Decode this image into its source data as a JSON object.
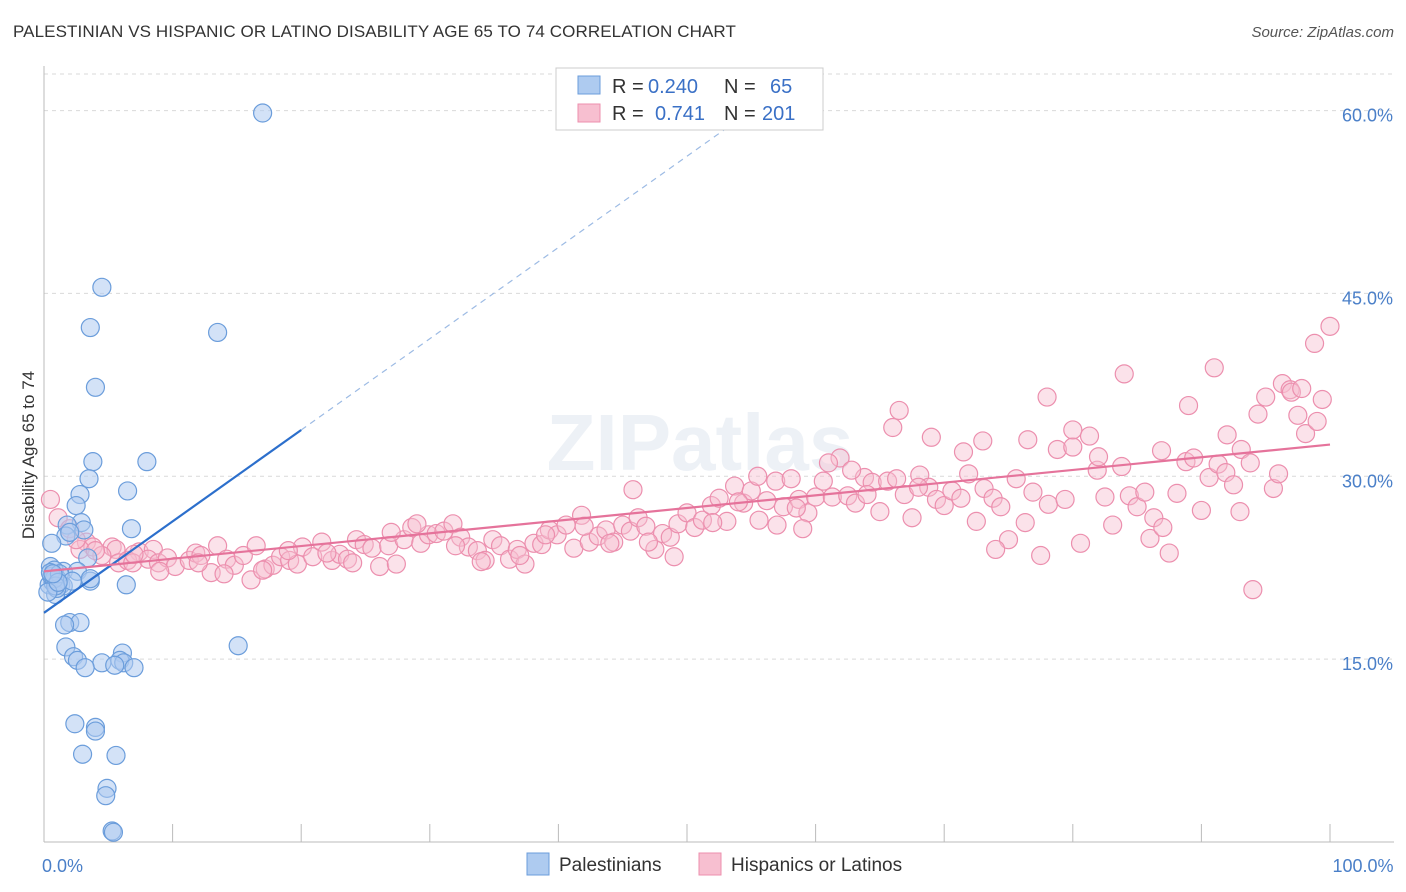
{
  "header": {
    "title": "PALESTINIAN VS HISPANIC OR LATINO DISABILITY AGE 65 TO 74 CORRELATION CHART",
    "source": "Source: ZipAtlas.com"
  },
  "colors": {
    "blue_fill": "#aecbf0",
    "blue_stroke": "#6b9ddb",
    "blue_line": "#2c6fcc",
    "pink_fill": "#f7bfd0",
    "pink_stroke": "#ec8fae",
    "pink_line": "#e5739b",
    "grid": "#d9d9d9",
    "tick_label": "#4a7fc8"
  },
  "legend_box": {
    "row1": {
      "r_label": "R =",
      "r_value": "0.240",
      "n_label": "N =",
      "n_value": "65"
    },
    "row2": {
      "r_label": "R =",
      "r_value": "0.741",
      "n_label": "N =",
      "n_value": "201"
    }
  },
  "bottom_legend": {
    "blue": "Palestinians",
    "pink": "Hispanics or Latinos"
  },
  "watermark": "ZIPatlas",
  "chart_data": {
    "type": "scatter",
    "title": "PALESTINIAN VS HISPANIC OR LATINO DISABILITY AGE 65 TO 74 CORRELATION CHART",
    "xlabel": "",
    "ylabel": "Disability Age 65 to 74",
    "xlim": [
      0,
      100
    ],
    "ylim": [
      0,
      63
    ],
    "x_tick_labels": [
      {
        "v": 0,
        "t": "0.0%"
      },
      {
        "v": 100,
        "t": "100.0%"
      }
    ],
    "y_tick_labels": [
      {
        "v": 15,
        "t": "15.0%"
      },
      {
        "v": 30,
        "t": "30.0%"
      },
      {
        "v": 45,
        "t": "45.0%"
      },
      {
        "v": 60,
        "t": "60.0%"
      }
    ],
    "grid": true,
    "legend_placement": "top-center",
    "series": [
      {
        "name": "Palestinians",
        "color": "#aecbf0",
        "trend": {
          "x0": 0,
          "y0": 18.8,
          "x1": 20,
          "y1": 33.8,
          "dash_to_x": 53,
          "dash_to_y": 58.5
        },
        "points": [
          [
            17.0,
            59.8
          ],
          [
            4.5,
            45.5
          ],
          [
            3.6,
            42.2
          ],
          [
            13.5,
            41.8
          ],
          [
            4.0,
            37.3
          ],
          [
            3.8,
            31.2
          ],
          [
            8.0,
            31.2
          ],
          [
            6.5,
            28.8
          ],
          [
            3.5,
            29.8
          ],
          [
            2.8,
            28.5
          ],
          [
            2.5,
            27.6
          ],
          [
            6.8,
            25.7
          ],
          [
            2.9,
            26.2
          ],
          [
            3.1,
            25.6
          ],
          [
            1.8,
            26.0
          ],
          [
            1.7,
            25.1
          ],
          [
            2.0,
            25.4
          ],
          [
            0.6,
            24.5
          ],
          [
            3.4,
            23.3
          ],
          [
            1.5,
            22.2
          ],
          [
            2.6,
            22.2
          ],
          [
            0.5,
            22.6
          ],
          [
            0.8,
            22.3
          ],
          [
            1.0,
            21.6
          ],
          [
            0.4,
            21.1
          ],
          [
            0.7,
            21.3
          ],
          [
            1.3,
            21.1
          ],
          [
            3.6,
            21.4
          ],
          [
            6.4,
            21.1
          ],
          [
            1.5,
            21.0
          ],
          [
            0.9,
            20.3
          ],
          [
            3.6,
            21.6
          ],
          [
            0.6,
            21.8
          ],
          [
            1.0,
            20.8
          ],
          [
            2.0,
            18.0
          ],
          [
            2.8,
            18.0
          ],
          [
            15.1,
            16.1
          ],
          [
            1.7,
            16.0
          ],
          [
            6.1,
            15.5
          ],
          [
            2.3,
            15.2
          ],
          [
            5.9,
            14.9
          ],
          [
            6.2,
            14.7
          ],
          [
            2.6,
            14.9
          ],
          [
            4.5,
            14.7
          ],
          [
            5.5,
            14.5
          ],
          [
            3.2,
            14.3
          ],
          [
            7.0,
            14.3
          ],
          [
            2.4,
            9.7
          ],
          [
            4.0,
            9.4
          ],
          [
            4.0,
            9.1
          ],
          [
            3.0,
            7.2
          ],
          [
            5.6,
            7.1
          ],
          [
            4.9,
            4.4
          ],
          [
            4.8,
            3.8
          ],
          [
            5.3,
            0.9
          ],
          [
            5.4,
            0.8
          ],
          [
            0.8,
            21.6
          ],
          [
            0.5,
            22.1
          ],
          [
            1.2,
            22.0
          ],
          [
            2.2,
            21.4
          ],
          [
            0.9,
            21.0
          ],
          [
            1.6,
            17.8
          ],
          [
            0.3,
            20.5
          ],
          [
            1.1,
            21.3
          ],
          [
            0.7,
            22.0
          ]
        ]
      },
      {
        "name": "Hispanics or Latinos",
        "color": "#f7bfd0",
        "trend": {
          "x0": 0,
          "y0": 22.2,
          "x1": 100,
          "y1": 32.6
        },
        "points": [
          [
            0.5,
            28.1
          ],
          [
            1.1,
            26.6
          ],
          [
            2.0,
            25.7
          ],
          [
            3.3,
            24.6
          ],
          [
            3.8,
            24.2
          ],
          [
            2.8,
            24.0
          ],
          [
            5.3,
            24.2
          ],
          [
            5.6,
            24.0
          ],
          [
            4.5,
            23.5
          ],
          [
            7.4,
            23.8
          ],
          [
            8.5,
            24.0
          ],
          [
            5.8,
            22.9
          ],
          [
            6.5,
            23.1
          ],
          [
            6.9,
            22.9
          ],
          [
            8.1,
            23.2
          ],
          [
            8.9,
            22.9
          ],
          [
            9.6,
            23.3
          ],
          [
            10.2,
            22.6
          ],
          [
            11.3,
            23.1
          ],
          [
            11.8,
            23.7
          ],
          [
            13.0,
            22.1
          ],
          [
            12.2,
            23.5
          ],
          [
            13.5,
            24.3
          ],
          [
            14.2,
            23.2
          ],
          [
            14.8,
            22.7
          ],
          [
            15.5,
            23.5
          ],
          [
            16.1,
            21.5
          ],
          [
            16.5,
            24.3
          ],
          [
            17.2,
            22.4
          ],
          [
            17.8,
            22.7
          ],
          [
            18.4,
            23.4
          ],
          [
            19.1,
            23.1
          ],
          [
            19.7,
            22.8
          ],
          [
            20.1,
            24.2
          ],
          [
            20.9,
            23.4
          ],
          [
            21.6,
            24.6
          ],
          [
            22.4,
            23.1
          ],
          [
            23.0,
            23.6
          ],
          [
            23.6,
            23.2
          ],
          [
            24.3,
            24.8
          ],
          [
            24.9,
            24.4
          ],
          [
            25.5,
            24.1
          ],
          [
            26.1,
            22.6
          ],
          [
            26.8,
            24.3
          ],
          [
            27.4,
            22.8
          ],
          [
            28.0,
            24.8
          ],
          [
            28.6,
            25.8
          ],
          [
            29.3,
            24.5
          ],
          [
            29.9,
            25.2
          ],
          [
            30.5,
            25.3
          ],
          [
            31.1,
            25.5
          ],
          [
            31.8,
            26.1
          ],
          [
            32.4,
            25.0
          ],
          [
            33.0,
            24.2
          ],
          [
            33.7,
            23.9
          ],
          [
            34.3,
            23.1
          ],
          [
            34.9,
            24.8
          ],
          [
            35.5,
            24.3
          ],
          [
            36.2,
            23.2
          ],
          [
            36.8,
            24.0
          ],
          [
            37.4,
            22.8
          ],
          [
            38.1,
            24.5
          ],
          [
            38.7,
            24.4
          ],
          [
            39.3,
            25.6
          ],
          [
            39.9,
            25.2
          ],
          [
            40.6,
            26.0
          ],
          [
            41.2,
            24.1
          ],
          [
            41.8,
            26.8
          ],
          [
            42.4,
            24.6
          ],
          [
            43.1,
            25.1
          ],
          [
            43.7,
            25.6
          ],
          [
            44.3,
            24.6
          ],
          [
            45.0,
            26.0
          ],
          [
            45.6,
            25.5
          ],
          [
            46.2,
            26.6
          ],
          [
            46.8,
            25.9
          ],
          [
            47.5,
            24.0
          ],
          [
            48.1,
            25.3
          ],
          [
            48.7,
            25.0
          ],
          [
            49.3,
            26.1
          ],
          [
            50.0,
            27.0
          ],
          [
            50.6,
            25.8
          ],
          [
            51.2,
            26.4
          ],
          [
            51.9,
            27.6
          ],
          [
            52.5,
            28.2
          ],
          [
            53.1,
            26.3
          ],
          [
            53.7,
            29.2
          ],
          [
            54.4,
            27.8
          ],
          [
            55.0,
            28.8
          ],
          [
            55.6,
            26.4
          ],
          [
            56.2,
            28.0
          ],
          [
            56.9,
            29.6
          ],
          [
            57.5,
            27.5
          ],
          [
            58.1,
            29.8
          ],
          [
            58.7,
            28.1
          ],
          [
            59.4,
            27.0
          ],
          [
            60.0,
            28.3
          ],
          [
            60.6,
            29.6
          ],
          [
            61.3,
            28.3
          ],
          [
            61.9,
            31.5
          ],
          [
            62.5,
            28.4
          ],
          [
            63.1,
            27.8
          ],
          [
            63.8,
            29.9
          ],
          [
            64.4,
            29.5
          ],
          [
            65.0,
            27.1
          ],
          [
            65.6,
            29.6
          ],
          [
            66.3,
            29.8
          ],
          [
            66.9,
            28.5
          ],
          [
            67.5,
            26.6
          ],
          [
            68.1,
            30.1
          ],
          [
            68.8,
            29.1
          ],
          [
            69.4,
            28.1
          ],
          [
            70.0,
            27.6
          ],
          [
            70.6,
            28.8
          ],
          [
            71.3,
            28.2
          ],
          [
            71.9,
            30.2
          ],
          [
            72.5,
            26.3
          ],
          [
            73.1,
            29.0
          ],
          [
            73.8,
            28.2
          ],
          [
            74.4,
            27.5
          ],
          [
            75.0,
            24.8
          ],
          [
            75.6,
            29.8
          ],
          [
            76.3,
            26.2
          ],
          [
            76.9,
            28.7
          ],
          [
            77.5,
            23.5
          ],
          [
            78.1,
            27.7
          ],
          [
            78.8,
            32.2
          ],
          [
            79.4,
            28.1
          ],
          [
            80.0,
            32.4
          ],
          [
            80.6,
            24.5
          ],
          [
            81.3,
            33.3
          ],
          [
            81.9,
            30.5
          ],
          [
            82.5,
            28.3
          ],
          [
            83.1,
            26.0
          ],
          [
            83.8,
            30.8
          ],
          [
            84.4,
            28.4
          ],
          [
            85.0,
            27.5
          ],
          [
            85.6,
            28.7
          ],
          [
            86.3,
            26.6
          ],
          [
            86.9,
            32.1
          ],
          [
            87.5,
            23.7
          ],
          [
            88.1,
            28.6
          ],
          [
            88.8,
            31.2
          ],
          [
            89.4,
            31.5
          ],
          [
            90.0,
            27.2
          ],
          [
            90.6,
            29.9
          ],
          [
            91.3,
            31.0
          ],
          [
            91.9,
            30.3
          ],
          [
            92.5,
            29.3
          ],
          [
            93.1,
            32.2
          ],
          [
            93.8,
            31.1
          ],
          [
            94.4,
            35.1
          ],
          [
            95.0,
            36.5
          ],
          [
            95.6,
            29.0
          ],
          [
            96.3,
            37.6
          ],
          [
            96.9,
            37.1
          ],
          [
            97.5,
            35.0
          ],
          [
            98.1,
            33.5
          ],
          [
            98.8,
            40.9
          ],
          [
            99.4,
            36.3
          ],
          [
            100.0,
            42.3
          ],
          [
            99.0,
            34.5
          ],
          [
            45.8,
            28.9
          ],
          [
            58.5,
            27.4
          ],
          [
            62.8,
            30.5
          ],
          [
            66.0,
            34.0
          ],
          [
            69.0,
            33.2
          ],
          [
            73.0,
            32.9
          ],
          [
            78.0,
            36.5
          ],
          [
            84.0,
            38.4
          ],
          [
            89.0,
            35.8
          ],
          [
            92.0,
            33.4
          ],
          [
            96.0,
            30.2
          ],
          [
            97.0,
            36.9
          ],
          [
            55.5,
            30.0
          ],
          [
            61.0,
            31.1
          ],
          [
            66.5,
            35.4
          ],
          [
            71.5,
            32.0
          ],
          [
            76.5,
            33.0
          ],
          [
            82.0,
            31.6
          ],
          [
            86.0,
            24.9
          ],
          [
            91.0,
            38.9
          ],
          [
            94.0,
            20.7
          ],
          [
            97.8,
            37.2
          ],
          [
            93.0,
            27.1
          ],
          [
            87.0,
            25.8
          ],
          [
            80.0,
            33.8
          ],
          [
            74.0,
            24.0
          ],
          [
            68.0,
            29.1
          ],
          [
            64.0,
            28.5
          ],
          [
            59.0,
            25.7
          ],
          [
            54.0,
            27.9
          ],
          [
            49.0,
            23.4
          ],
          [
            44.0,
            24.5
          ],
          [
            39.0,
            25.2
          ],
          [
            34.0,
            23.0
          ],
          [
            29.0,
            26.1
          ],
          [
            24.0,
            22.9
          ],
          [
            19.0,
            23.9
          ],
          [
            14.0,
            22.0
          ],
          [
            9.0,
            22.2
          ],
          [
            4.0,
            23.9
          ],
          [
            2.5,
            24.8
          ],
          [
            7.0,
            23.6
          ],
          [
            12.0,
            22.9
          ],
          [
            17.0,
            22.3
          ],
          [
            22.0,
            23.7
          ],
          [
            27.0,
            25.4
          ],
          [
            32.0,
            24.3
          ],
          [
            37.0,
            23.5
          ],
          [
            42.0,
            25.9
          ],
          [
            47.0,
            24.6
          ],
          [
            52.0,
            26.2
          ],
          [
            57.0,
            26.0
          ]
        ]
      }
    ]
  }
}
